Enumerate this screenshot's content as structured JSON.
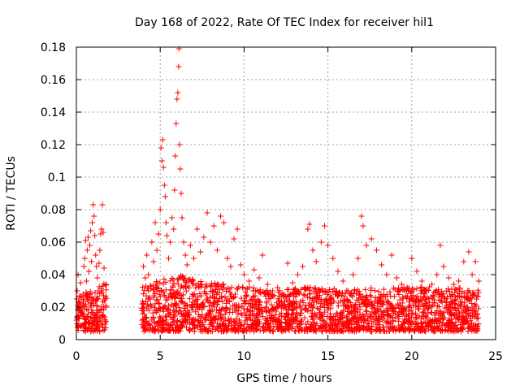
{
  "chart_data": {
    "type": "scatter",
    "title": "Day 168 of 2022, Rate Of TEC Index for receiver hil1",
    "xlabel": "GPS time / hours",
    "ylabel": "ROTI / TECUs",
    "xlim": [
      0,
      25
    ],
    "ylim": [
      0,
      0.18
    ],
    "xticks": [
      "0",
      "5",
      "10",
      "15",
      "20",
      "25"
    ],
    "yticks": [
      "0",
      "0.02",
      "0.04",
      "0.06",
      "0.08",
      "0.1",
      "0.12",
      "0.14",
      "0.16",
      "0.18"
    ],
    "grid": true,
    "marker": "+",
    "color": "#ff0000",
    "data_gap_hours": [
      1.8,
      3.9
    ],
    "series": [
      {
        "values": [
          [
            0.0,
            0.012
          ],
          [
            0.05,
            0.03
          ],
          [
            0.1,
            0.04
          ],
          [
            0.15,
            0.022
          ],
          [
            0.2,
            0.018
          ],
          [
            0.25,
            0.035
          ],
          [
            0.3,
            0.026
          ],
          [
            0.35,
            0.015
          ],
          [
            0.4,
            0.028
          ],
          [
            0.45,
            0.045
          ],
          [
            0.5,
            0.05
          ],
          [
            0.55,
            0.061
          ],
          [
            0.6,
            0.036
          ],
          [
            0.65,
            0.055
          ],
          [
            0.7,
            0.063
          ],
          [
            0.75,
            0.042
          ],
          [
            0.8,
            0.058
          ],
          [
            0.85,
            0.067
          ],
          [
            0.9,
            0.048
          ],
          [
            0.95,
            0.072
          ],
          [
            1.0,
            0.083
          ],
          [
            1.05,
            0.076
          ],
          [
            1.1,
            0.064
          ],
          [
            1.15,
            0.052
          ],
          [
            1.2,
            0.045
          ],
          [
            1.25,
            0.038
          ],
          [
            1.3,
            0.03
          ],
          [
            1.35,
            0.047
          ],
          [
            1.4,
            0.055
          ],
          [
            1.45,
            0.065
          ],
          [
            1.5,
            0.068
          ],
          [
            1.55,
            0.083
          ],
          [
            1.6,
            0.066
          ],
          [
            1.65,
            0.044
          ],
          [
            1.7,
            0.025
          ],
          [
            1.75,
            0.02
          ],
          [
            4.0,
            0.045
          ],
          [
            4.1,
            0.038
          ],
          [
            4.2,
            0.052
          ],
          [
            4.3,
            0.04
          ],
          [
            4.4,
            0.033
          ],
          [
            4.5,
            0.06
          ],
          [
            4.6,
            0.048
          ],
          [
            4.7,
            0.072
          ],
          [
            4.8,
            0.055
          ],
          [
            4.9,
            0.065
          ],
          [
            5.0,
            0.08
          ],
          [
            5.05,
            0.118
          ],
          [
            5.1,
            0.11
          ],
          [
            5.15,
            0.123
          ],
          [
            5.2,
            0.106
          ],
          [
            5.25,
            0.095
          ],
          [
            5.3,
            0.088
          ],
          [
            5.35,
            0.072
          ],
          [
            5.4,
            0.064
          ],
          [
            5.5,
            0.05
          ],
          [
            5.6,
            0.06
          ],
          [
            5.7,
            0.075
          ],
          [
            5.8,
            0.068
          ],
          [
            5.85,
            0.092
          ],
          [
            5.9,
            0.113
          ],
          [
            5.95,
            0.133
          ],
          [
            6.0,
            0.148
          ],
          [
            6.05,
            0.152
          ],
          [
            6.1,
            0.168
          ],
          [
            6.12,
            0.179
          ],
          [
            6.15,
            0.12
          ],
          [
            6.2,
            0.105
          ],
          [
            6.25,
            0.09
          ],
          [
            6.3,
            0.075
          ],
          [
            6.4,
            0.06
          ],
          [
            6.5,
            0.052
          ],
          [
            6.6,
            0.046
          ],
          [
            6.8,
            0.058
          ],
          [
            7.0,
            0.05
          ],
          [
            7.2,
            0.068
          ],
          [
            7.4,
            0.054
          ],
          [
            7.6,
            0.063
          ],
          [
            7.8,
            0.078
          ],
          [
            8.0,
            0.06
          ],
          [
            8.2,
            0.07
          ],
          [
            8.4,
            0.055
          ],
          [
            8.6,
            0.076
          ],
          [
            8.8,
            0.072
          ],
          [
            9.0,
            0.05
          ],
          [
            9.2,
            0.045
          ],
          [
            9.4,
            0.062
          ],
          [
            9.6,
            0.068
          ],
          [
            9.8,
            0.046
          ],
          [
            10.0,
            0.04
          ],
          [
            10.3,
            0.036
          ],
          [
            10.6,
            0.043
          ],
          [
            10.9,
            0.038
          ],
          [
            11.1,
            0.052
          ],
          [
            11.4,
            0.034
          ],
          [
            11.7,
            0.03
          ],
          [
            12.0,
            0.032
          ],
          [
            12.3,
            0.028
          ],
          [
            12.6,
            0.047
          ],
          [
            12.9,
            0.035
          ],
          [
            13.2,
            0.04
          ],
          [
            13.5,
            0.045
          ],
          [
            13.8,
            0.068
          ],
          [
            13.9,
            0.071
          ],
          [
            14.1,
            0.055
          ],
          [
            14.3,
            0.048
          ],
          [
            14.6,
            0.06
          ],
          [
            14.8,
            0.07
          ],
          [
            15.0,
            0.058
          ],
          [
            15.3,
            0.05
          ],
          [
            15.6,
            0.042
          ],
          [
            15.9,
            0.036
          ],
          [
            16.2,
            0.03
          ],
          [
            16.5,
            0.04
          ],
          [
            16.8,
            0.05
          ],
          [
            17.0,
            0.076
          ],
          [
            17.1,
            0.07
          ],
          [
            17.3,
            0.058
          ],
          [
            17.6,
            0.062
          ],
          [
            17.9,
            0.055
          ],
          [
            18.2,
            0.046
          ],
          [
            18.5,
            0.04
          ],
          [
            18.8,
            0.052
          ],
          [
            19.1,
            0.038
          ],
          [
            19.4,
            0.034
          ],
          [
            19.7,
            0.03
          ],
          [
            20.0,
            0.05
          ],
          [
            20.3,
            0.042
          ],
          [
            20.6,
            0.036
          ],
          [
            20.9,
            0.03
          ],
          [
            21.2,
            0.034
          ],
          [
            21.5,
            0.04
          ],
          [
            21.7,
            0.058
          ],
          [
            21.9,
            0.045
          ],
          [
            22.2,
            0.038
          ],
          [
            22.5,
            0.034
          ],
          [
            22.8,
            0.036
          ],
          [
            23.1,
            0.048
          ],
          [
            23.4,
            0.054
          ],
          [
            23.6,
            0.04
          ],
          [
            23.8,
            0.048
          ],
          [
            24.0,
            0.036
          ]
        ]
      }
    ],
    "envelope": [
      [
        0.0,
        0.022
      ],
      [
        1.8,
        0.03
      ],
      [
        4.0,
        0.028
      ],
      [
        5.0,
        0.032
      ],
      [
        6.0,
        0.035
      ],
      [
        8.0,
        0.03
      ],
      [
        10.0,
        0.028
      ],
      [
        12.0,
        0.025
      ],
      [
        14.0,
        0.028
      ],
      [
        16.0,
        0.026
      ],
      [
        18.0,
        0.027
      ],
      [
        20.0,
        0.027
      ],
      [
        22.0,
        0.028
      ],
      [
        24.0,
        0.026
      ]
    ]
  }
}
